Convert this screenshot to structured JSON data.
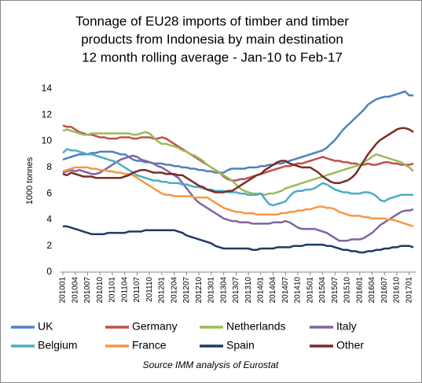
{
  "chart_data": {
    "type": "line",
    "title": [
      "Tonnage of EU28 imports of timber and timber",
      "products from Indonesia by main destination",
      "12 month rolling average - Jan-10 to Feb-17"
    ],
    "y_label": "1000 tonnes",
    "source": "Source IMM analysis of Eurostat",
    "ylim": [
      0,
      14
    ],
    "yticks": [
      0,
      2,
      4,
      6,
      8,
      10,
      12,
      14
    ],
    "grid": false,
    "legend": "bottom",
    "categories": [
      "201001",
      null,
      null,
      "201004",
      null,
      null,
      "201007",
      null,
      null,
      "201010",
      null,
      null,
      "201101",
      null,
      null,
      "201104",
      null,
      null,
      "201107",
      null,
      null,
      "201110",
      null,
      null,
      "201201",
      null,
      null,
      "201204",
      null,
      null,
      "201207",
      null,
      null,
      "201210",
      null,
      null,
      "201301",
      null,
      null,
      "201304",
      null,
      null,
      "201307",
      null,
      null,
      "201310",
      null,
      null,
      "201401",
      null,
      null,
      "201404",
      null,
      null,
      "201407",
      null,
      null,
      "201410",
      null,
      null,
      "201501",
      null,
      null,
      "201504",
      null,
      null,
      "201507",
      null,
      null,
      "201510",
      null,
      null,
      "201601",
      null,
      null,
      "201604",
      null,
      null,
      "201607",
      null,
      null,
      "201610",
      null,
      null,
      "201701",
      null
    ],
    "series": [
      {
        "name": "UK",
        "color": "#4f81bd",
        "values": [
          8.6,
          8.7,
          8.8,
          8.9,
          9.0,
          9.0,
          9.0,
          9.1,
          9.1,
          9.2,
          9.2,
          9.2,
          9.2,
          9.1,
          9.0,
          9.0,
          8.8,
          8.6,
          8.5,
          8.5,
          8.4,
          8.4,
          8.3,
          8.3,
          8.3,
          8.2,
          8.2,
          8.1,
          8.1,
          8.0,
          8.0,
          7.9,
          7.9,
          7.8,
          7.8,
          7.7,
          7.7,
          7.6,
          7.6,
          7.6,
          7.8,
          7.9,
          7.9,
          7.9,
          7.9,
          8.0,
          8.0,
          8.0,
          8.1,
          8.1,
          8.2,
          8.2,
          8.3,
          8.3,
          8.4,
          8.5,
          8.6,
          8.7,
          8.8,
          8.9,
          9.0,
          9.1,
          9.2,
          9.3,
          9.5,
          9.8,
          10.1,
          10.5,
          10.9,
          11.2,
          11.5,
          11.8,
          12.1,
          12.4,
          12.8,
          13.0,
          13.2,
          13.3,
          13.4,
          13.4,
          13.5,
          13.6,
          13.7,
          13.8,
          13.5,
          13.5
        ]
      },
      {
        "name": "Germany",
        "color": "#c0504d",
        "values": [
          11.2,
          11.1,
          11.1,
          10.9,
          10.7,
          10.6,
          10.5,
          10.5,
          10.4,
          10.3,
          10.3,
          10.2,
          10.2,
          10.2,
          10.3,
          10.3,
          10.3,
          10.2,
          10.2,
          10.3,
          10.3,
          10.3,
          10.2,
          10.2,
          10.3,
          10.2,
          10.0,
          9.8,
          9.6,
          9.4,
          9.2,
          9.0,
          8.8,
          8.6,
          8.4,
          8.2,
          8.0,
          7.8,
          7.6,
          7.3,
          7.1,
          7.0,
          7.0,
          7.1,
          7.1,
          7.2,
          7.3,
          7.4,
          7.5,
          7.6,
          7.7,
          7.8,
          7.9,
          8.0,
          8.1,
          8.1,
          8.2,
          8.3,
          8.3,
          8.4,
          8.5,
          8.6,
          8.7,
          8.8,
          8.7,
          8.6,
          8.5,
          8.5,
          8.4,
          8.4,
          8.3,
          8.3,
          8.2,
          8.2,
          8.3,
          8.2,
          8.2,
          8.3,
          8.4,
          8.4,
          8.3,
          8.3,
          8.2,
          8.2,
          8.2,
          8.3
        ]
      },
      {
        "name": "Netherlands",
        "color": "#9bbb59",
        "values": [
          10.8,
          10.9,
          10.8,
          10.7,
          10.6,
          10.5,
          10.5,
          10.6,
          10.6,
          10.6,
          10.6,
          10.6,
          10.6,
          10.6,
          10.6,
          10.6,
          10.6,
          10.5,
          10.5,
          10.6,
          10.7,
          10.6,
          10.3,
          10.0,
          9.8,
          9.8,
          9.7,
          9.6,
          9.5,
          9.3,
          9.2,
          9.0,
          8.9,
          8.7,
          8.5,
          8.2,
          8.0,
          7.8,
          7.6,
          7.4,
          7.2,
          7.0,
          6.7,
          6.4,
          6.2,
          6.1,
          6.0,
          6.0,
          6.0,
          5.9,
          6.0,
          6.0,
          6.1,
          6.2,
          6.4,
          6.5,
          6.6,
          6.7,
          6.8,
          6.9,
          7.0,
          7.1,
          7.2,
          7.3,
          7.4,
          7.5,
          7.6,
          7.7,
          7.8,
          7.9,
          8.0,
          8.1,
          8.2,
          8.4,
          8.6,
          8.8,
          9.0,
          8.9,
          8.8,
          8.7,
          8.6,
          8.5,
          8.4,
          8.2,
          8.0,
          7.7
        ]
      },
      {
        "name": "Italy",
        "color": "#8064a2",
        "values": [
          7.6,
          7.7,
          7.8,
          7.7,
          7.8,
          7.7,
          7.6,
          7.5,
          7.5,
          7.6,
          7.8,
          8.0,
          8.2,
          8.4,
          8.6,
          8.7,
          8.8,
          8.9,
          8.8,
          8.6,
          8.5,
          8.4,
          8.3,
          8.1,
          8.0,
          7.8,
          7.6,
          7.4,
          7.2,
          6.8,
          6.4,
          6.0,
          5.6,
          5.3,
          5.1,
          4.9,
          4.7,
          4.5,
          4.3,
          4.1,
          4.0,
          3.9,
          3.9,
          3.8,
          3.8,
          3.8,
          3.7,
          3.7,
          3.7,
          3.7,
          3.7,
          3.8,
          3.8,
          3.8,
          3.9,
          3.8,
          3.6,
          3.4,
          3.3,
          3.3,
          3.3,
          3.3,
          3.2,
          3.1,
          3.0,
          2.8,
          2.6,
          2.4,
          2.4,
          2.4,
          2.5,
          2.5,
          2.5,
          2.6,
          2.8,
          3.0,
          3.3,
          3.6,
          3.8,
          4.0,
          4.2,
          4.4,
          4.6,
          4.7,
          4.7,
          4.8
        ]
      },
      {
        "name": "Belgium",
        "color": "#4bacc6",
        "values": [
          9.1,
          9.4,
          9.3,
          9.3,
          9.2,
          9.1,
          9.0,
          9.0,
          8.9,
          8.8,
          8.7,
          8.6,
          8.5,
          8.4,
          8.2,
          8.0,
          7.8,
          7.6,
          7.4,
          7.3,
          7.2,
          7.1,
          7.0,
          7.0,
          6.9,
          6.9,
          6.8,
          6.8,
          6.8,
          6.7,
          6.7,
          6.6,
          6.5,
          6.5,
          6.4,
          6.3,
          6.3,
          6.2,
          6.2,
          6.2,
          6.1,
          6.1,
          6.1,
          6.0,
          6.0,
          5.9,
          5.9,
          5.9,
          6.0,
          5.6,
          5.2,
          5.1,
          5.2,
          5.3,
          5.4,
          5.8,
          6.1,
          6.2,
          6.2,
          6.3,
          6.3,
          6.4,
          6.6,
          6.8,
          6.7,
          6.5,
          6.3,
          6.2,
          6.1,
          6.1,
          6.0,
          6.0,
          6.0,
          6.1,
          6.1,
          6.0,
          5.8,
          5.5,
          5.4,
          5.6,
          5.7,
          5.8,
          5.9,
          5.9,
          5.9,
          5.9
        ]
      },
      {
        "name": "France",
        "color": "#f79646",
        "values": [
          7.7,
          7.8,
          7.9,
          8.0,
          8.0,
          8.0,
          8.0,
          7.9,
          7.9,
          7.8,
          7.8,
          7.7,
          7.7,
          7.6,
          7.6,
          7.5,
          7.5,
          7.4,
          7.2,
          7.0,
          6.8,
          6.6,
          6.4,
          6.2,
          6.0,
          5.9,
          5.9,
          5.8,
          5.8,
          5.8,
          5.8,
          5.8,
          5.7,
          5.7,
          5.7,
          5.7,
          5.5,
          5.3,
          5.1,
          4.9,
          4.8,
          4.7,
          4.6,
          4.6,
          4.5,
          4.5,
          4.5,
          4.4,
          4.4,
          4.4,
          4.4,
          4.4,
          4.4,
          4.5,
          4.5,
          4.6,
          4.6,
          4.7,
          4.7,
          4.8,
          4.8,
          4.9,
          5.0,
          5.0,
          4.9,
          4.9,
          4.8,
          4.6,
          4.5,
          4.4,
          4.3,
          4.3,
          4.3,
          4.2,
          4.2,
          4.1,
          4.1,
          4.1,
          4.1,
          4.0,
          4.0,
          3.9,
          3.8,
          3.7,
          3.6,
          3.5
        ]
      },
      {
        "name": "Spain",
        "color": "#1f3b63",
        "values": [
          3.5,
          3.5,
          3.4,
          3.3,
          3.2,
          3.1,
          3.0,
          2.9,
          2.9,
          2.9,
          2.9,
          3.0,
          3.0,
          3.0,
          3.0,
          3.0,
          3.1,
          3.1,
          3.1,
          3.1,
          3.2,
          3.2,
          3.2,
          3.2,
          3.2,
          3.2,
          3.2,
          3.2,
          3.1,
          3.0,
          2.8,
          2.7,
          2.6,
          2.5,
          2.4,
          2.3,
          2.2,
          2.0,
          1.9,
          1.8,
          1.8,
          1.8,
          1.8,
          1.8,
          1.8,
          1.8,
          1.7,
          1.7,
          1.8,
          1.8,
          1.8,
          1.8,
          1.9,
          1.9,
          1.9,
          1.9,
          2.0,
          2.0,
          2.0,
          2.1,
          2.1,
          2.1,
          2.1,
          2.1,
          2.0,
          2.0,
          1.9,
          1.8,
          1.7,
          1.7,
          1.6,
          1.6,
          1.5,
          1.5,
          1.6,
          1.6,
          1.7,
          1.7,
          1.8,
          1.8,
          1.9,
          1.9,
          2.0,
          2.0,
          2.0,
          1.9
        ]
      },
      {
        "name": "Other",
        "color": "#7b2c26",
        "values": [
          7.5,
          7.4,
          7.6,
          7.5,
          7.4,
          7.3,
          7.3,
          7.3,
          7.2,
          7.2,
          7.2,
          7.2,
          7.2,
          7.2,
          7.2,
          7.3,
          7.4,
          7.6,
          7.7,
          7.8,
          7.8,
          7.7,
          7.6,
          7.6,
          7.6,
          7.5,
          7.5,
          7.5,
          7.4,
          7.4,
          7.2,
          7.0,
          6.8,
          6.6,
          6.5,
          6.3,
          6.2,
          6.1,
          6.1,
          6.1,
          6.2,
          6.2,
          6.4,
          6.6,
          6.8,
          7.0,
          7.2,
          7.4,
          7.5,
          7.8,
          8.0,
          8.2,
          8.4,
          8.5,
          8.5,
          8.3,
          8.2,
          8.1,
          8.0,
          8.0,
          8.0,
          7.8,
          7.6,
          7.3,
          7.1,
          6.9,
          6.8,
          6.8,
          6.9,
          7.0,
          7.2,
          7.5,
          8.0,
          8.5,
          9.0,
          9.4,
          9.8,
          10.1,
          10.3,
          10.5,
          10.7,
          10.9,
          11.0,
          11.0,
          10.9,
          10.7
        ]
      }
    ]
  }
}
